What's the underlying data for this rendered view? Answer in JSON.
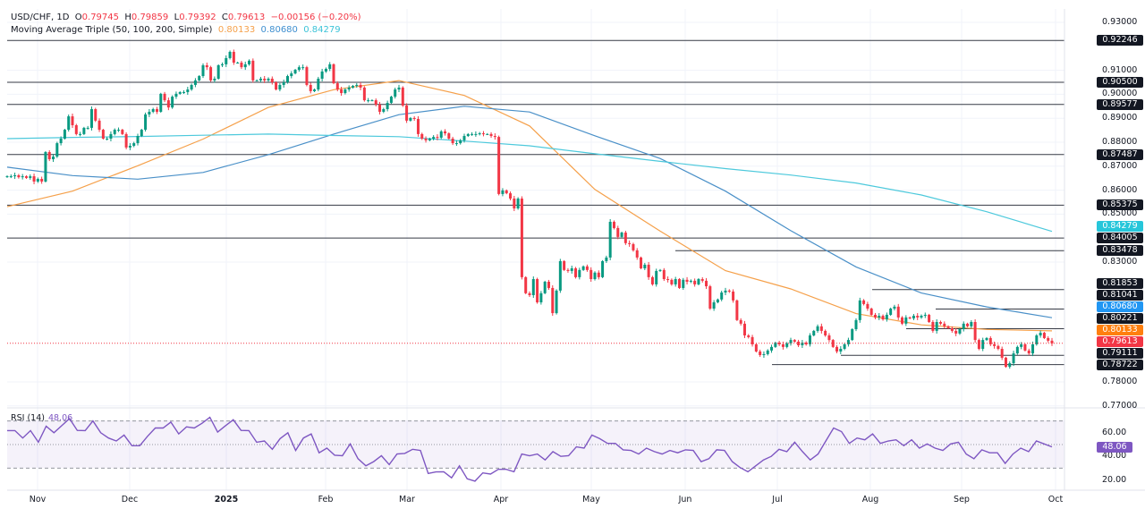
{
  "header": {
    "symbol": "USD/CHF, 1D",
    "o_label": "O",
    "open": "0.79745",
    "h_label": "H",
    "high": "0.79859",
    "l_label": "L",
    "low": "0.79392",
    "c_label": "C",
    "close": "0.79613",
    "change": "−0.00156 (−0.20%)",
    "ma_title": "Moving Average Triple (50, 100, 200, Simple)",
    "ma50": "0.80133",
    "ma100": "0.80680",
    "ma200": "0.84279"
  },
  "chart_data": [
    {
      "type": "candlestick",
      "title": "USD/CHF, 1D",
      "x_tick_labels": [
        "Nov",
        "Dec",
        "2025",
        "Feb",
        "Mar",
        "Apr",
        "May",
        "Jun",
        "Jul",
        "Aug",
        "Sep",
        "Oct"
      ],
      "y_tick_labels": [
        "0.93000",
        "0.91000",
        "0.90000",
        "0.89000",
        "0.88000",
        "0.87000",
        "0.86000",
        "0.85000",
        "0.83000",
        "0.78000",
        "0.77000"
      ],
      "ylim": [
        0.77,
        0.93
      ],
      "up_color": "#089981",
      "down_color": "#f23645",
      "first_open": 0.8655,
      "closes": [
        0.8658,
        0.8658,
        0.8662,
        0.8654,
        0.8658,
        0.8651,
        0.8658,
        0.8636,
        0.8647,
        0.8636,
        0.8759,
        0.8729,
        0.874,
        0.8796,
        0.8815,
        0.8852,
        0.8908,
        0.8871,
        0.8834,
        0.8834,
        0.886,
        0.886,
        0.8938,
        0.889,
        0.8852,
        0.8815,
        0.8815,
        0.8834,
        0.8852,
        0.8852,
        0.8834,
        0.8778,
        0.8785,
        0.8796,
        0.8826,
        0.8852,
        0.8916,
        0.8927,
        0.8938,
        0.8927,
        0.9002,
        0.8975,
        0.8945,
        0.899,
        0.9002,
        0.9009,
        0.9009,
        0.902,
        0.9039,
        0.9058,
        0.9076,
        0.9121,
        0.9113,
        0.9058,
        0.9065,
        0.9121,
        0.9125,
        0.9151,
        0.9177,
        0.9132,
        0.9132,
        0.9113,
        0.9125,
        0.914,
        0.9058,
        0.9058,
        0.9065,
        0.9058,
        0.9065,
        0.905,
        0.902,
        0.9039,
        0.905,
        0.9076,
        0.9087,
        0.9102,
        0.9113,
        0.9113,
        0.9039,
        0.9013,
        0.902,
        0.9065,
        0.9095,
        0.9106,
        0.9125,
        0.9046,
        0.902,
        0.9005,
        0.902,
        0.9028,
        0.9035,
        0.9039,
        0.9028,
        0.8975,
        0.8975,
        0.8975,
        0.8957,
        0.8927,
        0.8938,
        0.8964,
        0.899,
        0.902,
        0.9028,
        0.8953,
        0.889,
        0.8901,
        0.8897,
        0.8834,
        0.8815,
        0.8808,
        0.8815,
        0.8822,
        0.8819,
        0.8845,
        0.8837,
        0.8815,
        0.8796,
        0.8796,
        0.8808,
        0.8826,
        0.8834,
        0.8834,
        0.8834,
        0.8837,
        0.8834,
        0.8834,
        0.8826,
        0.8822,
        0.8584,
        0.8599,
        0.8587,
        0.8565,
        0.8524,
        0.8565,
        0.8237,
        0.817,
        0.8162,
        0.8229,
        0.8132,
        0.817,
        0.8218,
        0.8192,
        0.8087,
        0.8181,
        0.8304,
        0.8267,
        0.8263,
        0.8274,
        0.8237,
        0.8267,
        0.8282,
        0.8267,
        0.8229,
        0.8256,
        0.8237,
        0.8304,
        0.8319,
        0.8468,
        0.8442,
        0.8405,
        0.8423,
        0.8379,
        0.8375,
        0.8349,
        0.8319,
        0.8274,
        0.8289,
        0.8237,
        0.8207,
        0.8263,
        0.8267,
        0.8229,
        0.8226,
        0.8207,
        0.8229,
        0.8192,
        0.8226,
        0.8218,
        0.8222,
        0.8207,
        0.8229,
        0.8222,
        0.8199,
        0.8106,
        0.8132,
        0.8144,
        0.8173,
        0.8181,
        0.8177,
        0.814,
        0.8058,
        0.8043,
        0.7994,
        0.7987,
        0.7957,
        0.7927,
        0.7912,
        0.7916,
        0.7931,
        0.7946,
        0.7964,
        0.7957,
        0.7946,
        0.7961,
        0.7975,
        0.7968,
        0.7953,
        0.7964,
        0.7957,
        0.7994,
        0.8013,
        0.8032,
        0.8013,
        0.7994,
        0.7975,
        0.7946,
        0.7927,
        0.7938,
        0.7957,
        0.7975,
        0.802,
        0.8058,
        0.814,
        0.8125,
        0.8106,
        0.808,
        0.8069,
        0.8076,
        0.8061,
        0.808,
        0.8106,
        0.8114,
        0.8069,
        0.8043,
        0.8069,
        0.8065,
        0.8076,
        0.8069,
        0.8076,
        0.808,
        0.805,
        0.8013,
        0.805,
        0.8043,
        0.8032,
        0.8024,
        0.8013,
        0.8002,
        0.802,
        0.8043,
        0.8032,
        0.805,
        0.7975,
        0.7938,
        0.7975,
        0.7983,
        0.7957,
        0.795,
        0.7938,
        0.7901,
        0.7863,
        0.7878,
        0.7919,
        0.7946,
        0.7957,
        0.7931,
        0.7919,
        0.7957,
        0.7994,
        0.8005,
        0.7983,
        0.7972,
        0.7961
      ],
      "moving_averages": [
        {
          "name": "MA 50",
          "color": "#f5a04a",
          "last": "0.80133",
          "values": [
            0.8531,
            0.8596,
            0.8702,
            0.8813,
            0.8945,
            0.9019,
            0.9057,
            0.8995,
            0.8868,
            0.8603,
            0.8429,
            0.8264,
            0.8188,
            0.8085,
            0.8038,
            0.8019,
            0.8013
          ]
        },
        {
          "name": "MA 100",
          "color": "#4a90c8",
          "last": "0.80680",
          "values": [
            0.8696,
            0.8661,
            0.8646,
            0.8674,
            0.8748,
            0.8834,
            0.8915,
            0.895,
            0.8926,
            0.8827,
            0.8732,
            0.8596,
            0.8431,
            0.828,
            0.8171,
            0.8113,
            0.8068
          ]
        },
        {
          "name": "MA 200",
          "color": "#4dc9dc",
          "last": "0.84279",
          "values": [
            0.8815,
            0.882,
            0.8824,
            0.8829,
            0.8834,
            0.8828,
            0.8823,
            0.8805,
            0.8785,
            0.8752,
            0.872,
            0.869,
            0.8663,
            0.863,
            0.858,
            0.851,
            0.8428
          ]
        }
      ],
      "horizontal_levels": [
        "0.92246",
        "0.90500",
        "0.89577",
        "0.87487",
        "0.85375",
        "0.84005",
        "0.83478",
        "0.81853",
        "0.81041",
        "0.80221",
        "0.79111",
        "0.78722"
      ],
      "last_price": "0.79613",
      "last_price_color": "#f23645"
    },
    {
      "type": "line",
      "title": "RSI (14)",
      "last": "48.06",
      "color": "#7e57c2",
      "ylim": [
        10,
        80
      ],
      "bands": [
        70,
        50,
        30
      ],
      "y_tick_labels": [
        "60.00",
        "40.00",
        "20.00"
      ],
      "values": [
        61.8,
        61.8,
        55.5,
        61.8,
        52,
        65.5,
        60,
        66,
        72,
        62,
        61.8,
        70,
        60,
        55.5,
        53,
        58,
        49,
        49,
        57,
        64,
        64,
        69,
        59,
        65,
        64,
        68,
        73,
        60.5,
        66,
        71,
        62,
        61.8,
        52,
        53,
        46,
        55,
        60,
        45,
        55.5,
        59,
        43,
        47,
        41,
        40.5,
        50.5,
        38,
        32,
        35.5,
        40.5,
        33,
        42,
        42.5,
        46,
        45,
        25.5,
        26.8,
        27,
        21.8,
        32,
        21,
        19,
        26,
        25,
        29,
        29,
        27,
        42,
        40.5,
        42,
        37,
        44,
        40,
        40.5,
        48,
        47,
        58,
        55,
        51,
        51,
        45.5,
        45,
        42,
        47,
        44,
        42,
        45,
        43,
        45.5,
        45,
        35.5,
        38,
        45.5,
        45,
        35.5,
        30.5,
        27,
        32,
        37,
        40,
        46,
        44,
        52,
        44,
        37,
        42,
        53,
        64,
        61,
        51,
        55.5,
        54,
        59,
        51,
        53,
        54,
        49,
        54,
        47,
        50.5,
        47,
        45,
        50.5,
        52,
        42,
        38,
        45.5,
        43,
        43,
        34,
        42,
        47,
        44,
        53,
        50.5,
        48.06
      ]
    }
  ]
}
